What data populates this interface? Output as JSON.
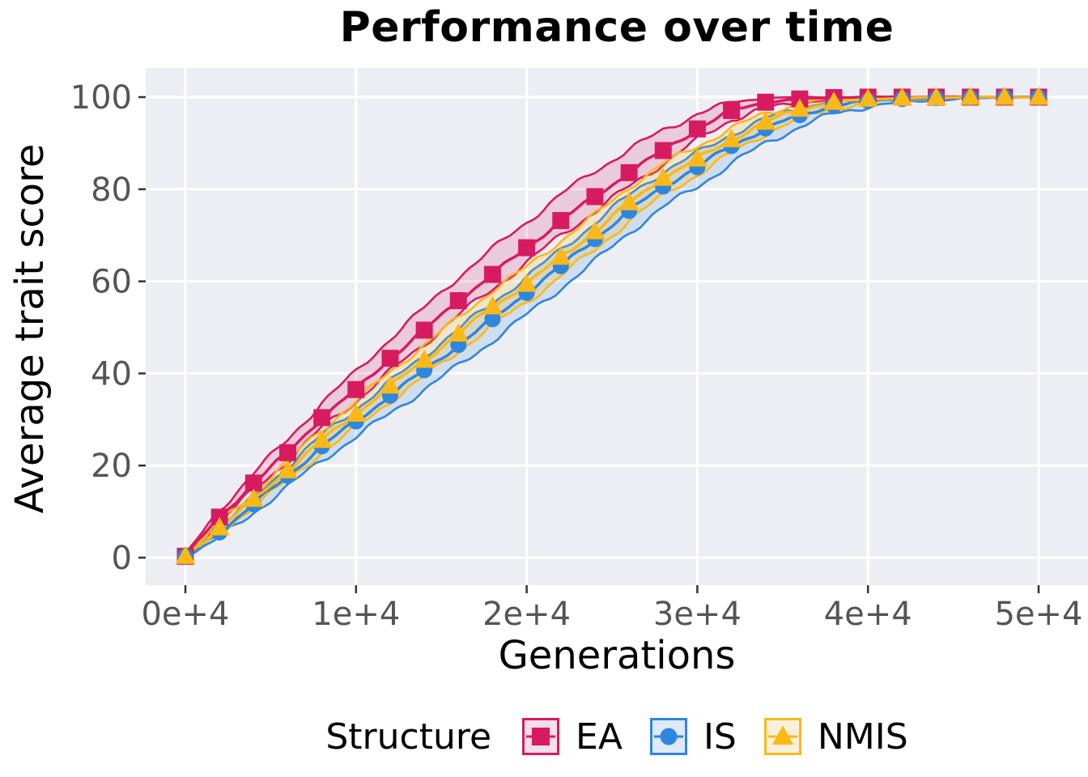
{
  "title": "Performance over time",
  "x_axis": {
    "label": "Generations",
    "tick_labels": [
      "0e+4",
      "1e+4",
      "2e+4",
      "3e+4",
      "4e+4",
      "5e+4"
    ],
    "tick_values": [
      0,
      10000,
      20000,
      30000,
      40000,
      50000
    ]
  },
  "y_axis": {
    "label": "Average trait score",
    "tick_labels": [
      "0",
      "20",
      "40",
      "60",
      "80",
      "100"
    ],
    "tick_values": [
      0,
      20,
      40,
      60,
      80,
      100
    ]
  },
  "legend": {
    "title": "Structure",
    "position": "bottom",
    "entries": [
      {
        "label": "EA",
        "marker": "square",
        "color": "#D81B60",
        "key_fill": "#F5DEE8"
      },
      {
        "label": "IS",
        "marker": "circle",
        "color": "#2E86DE",
        "key_fill": "#DEE8F7"
      },
      {
        "label": "NMIS",
        "marker": "triangle",
        "color": "#FBB817",
        "key_fill": "#F8F0DC"
      }
    ]
  },
  "colors": {
    "panel": "#EDEEF4",
    "grid": "#FFFFFF",
    "tick_label": "#555555",
    "tick_mark": "#333333",
    "title_text": "#000000"
  },
  "chart_data": {
    "type": "line",
    "title": "Performance over time",
    "xlabel": "Generations",
    "ylabel": "Average trait score",
    "xlim": [
      0,
      50000
    ],
    "ylim": [
      0,
      100
    ],
    "grid": true,
    "legend_position": "bottom",
    "marker_interval": 2000,
    "x": [
      0,
      2000,
      4000,
      6000,
      8000,
      10000,
      12000,
      14000,
      16000,
      18000,
      20000,
      22000,
      24000,
      26000,
      28000,
      30000,
      32000,
      34000,
      36000,
      38000,
      40000,
      42000,
      44000,
      46000,
      48000,
      50000
    ],
    "series": [
      {
        "name": "EA",
        "marker": "square",
        "color": "#D81B60",
        "band_opacity": 0.16,
        "values": [
          0.3,
          8.8,
          16.2,
          22.8,
          30.4,
          36.5,
          43.3,
          49.4,
          55.8,
          61.5,
          67.3,
          73.2,
          78.4,
          83.6,
          88.4,
          93.1,
          97.1,
          98.9,
          99.6,
          99.9,
          100,
          100,
          100,
          100,
          100,
          100
        ],
        "band_upper": [
          0.5,
          10.3,
          18.4,
          25.6,
          33.7,
          40.3,
          47.6,
          54.2,
          61.0,
          67.0,
          72.9,
          78.8,
          84.0,
          88.6,
          92.8,
          96.4,
          98.9,
          99.8,
          100,
          100,
          100,
          100,
          100,
          100,
          100,
          100
        ],
        "band_lower": [
          0.1,
          7.8,
          14.7,
          21.0,
          28.2,
          34.0,
          40.5,
          46.4,
          52.7,
          58.3,
          64.1,
          70.0,
          75.2,
          80.6,
          85.6,
          90.7,
          95.2,
          97.6,
          98.8,
          99.5,
          99.8,
          99.9,
          100,
          100,
          100,
          100
        ]
      },
      {
        "name": "IS",
        "marker": "circle",
        "color": "#2E86DE",
        "band_opacity": 0.16,
        "values": [
          0.3,
          5.5,
          11.6,
          17.8,
          24.2,
          29.6,
          35.2,
          40.7,
          46.2,
          51.8,
          57.5,
          63.3,
          69.2,
          75.3,
          80.6,
          84.8,
          89.4,
          93.2,
          96.1,
          98.2,
          99.2,
          99.6,
          99.8,
          99.9,
          100,
          100
        ],
        "band_upper": [
          0.5,
          6.5,
          13.1,
          19.8,
          26.6,
          32.3,
          38.2,
          43.9,
          49.6,
          55.3,
          61.0,
          66.8,
          72.7,
          78.7,
          83.8,
          87.8,
          92.0,
          95.3,
          97.7,
          99.2,
          99.8,
          99.9,
          100,
          100,
          100,
          100
        ],
        "band_lower": [
          0.1,
          4.3,
          9.8,
          15.4,
          21.2,
          26.2,
          31.4,
          36.5,
          41.7,
          47.1,
          52.7,
          58.5,
          64.4,
          70.6,
          76.1,
          80.6,
          85.6,
          90.0,
          93.6,
          96.4,
          98.0,
          98.9,
          99.4,
          99.7,
          99.9,
          100
        ]
      },
      {
        "name": "NMIS",
        "marker": "triangle",
        "color": "#FBB817",
        "band_opacity": 0.18,
        "values": [
          0.3,
          6.5,
          12.7,
          18.9,
          25.5,
          31.2,
          37.3,
          42.9,
          48.6,
          54.5,
          59.4,
          65.3,
          70.8,
          77.1,
          82.4,
          86.6,
          90.8,
          94.6,
          97.4,
          98.9,
          99.6,
          99.8,
          99.9,
          100,
          100,
          100
        ],
        "band_upper": [
          0.5,
          7.5,
          14.2,
          20.9,
          27.9,
          34.0,
          40.4,
          46.2,
          52.1,
          58.1,
          63.0,
          68.9,
          74.4,
          80.5,
          85.5,
          89.4,
          93.2,
          96.5,
          98.7,
          99.7,
          100,
          100,
          100,
          100,
          100,
          100
        ],
        "band_lower": [
          0.1,
          5.5,
          11.1,
          16.8,
          22.9,
          28.2,
          34.0,
          39.3,
          44.8,
          50.6,
          55.4,
          61.3,
          66.8,
          73.2,
          78.7,
          83.2,
          87.8,
          92.1,
          95.5,
          97.6,
          98.8,
          99.4,
          99.7,
          99.9,
          100,
          100
        ]
      }
    ]
  }
}
